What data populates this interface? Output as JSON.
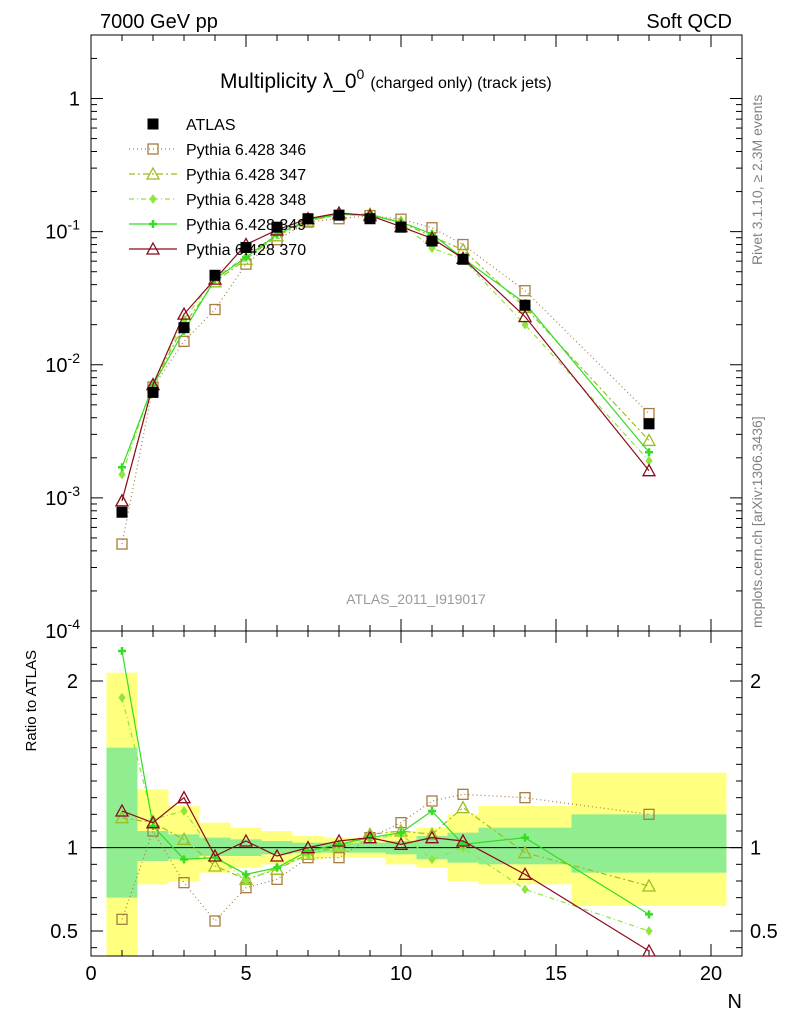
{
  "header": {
    "left": "7000 GeV pp",
    "right": "Soft QCD"
  },
  "title": {
    "main": "Multiplicity λ_0",
    "sup": "0",
    "sub": "(charged only) (track jets)"
  },
  "side": {
    "rivet": "Rivet 3.1.10, ≥ 2.3M events",
    "mcplots": "mcplots.cern.ch [arXiv:1306.3436]"
  },
  "watermark": "ATLAS_2011_I919017",
  "colors": {
    "atlas": "#000000",
    "p346": "#a87d3e",
    "p347": "#9bbe1e",
    "p348": "#8ee63c",
    "p349": "#33dd22",
    "p370": "#8b0a1e",
    "band_inner": "#90ee90",
    "band_outer": "#ffff80"
  },
  "chart_data": {
    "type": "line",
    "xlabel": "N",
    "ylabel_ratio": "Ratio to ATLAS",
    "xlim": [
      0,
      21
    ],
    "ylim_main": [
      0.0001,
      3
    ],
    "ylim_ratio": [
      0.35,
      2.3
    ],
    "yscale_main": "log",
    "x_ticks": [
      "0",
      "5",
      "10",
      "15",
      "20"
    ],
    "y_ticks_main": [
      "10^-4",
      "10^-3",
      "10^-2",
      "10^-1",
      "1"
    ],
    "y_ticks_ratio": [
      "0.5",
      "1",
      "2"
    ],
    "legend_position": "top-left",
    "x": [
      1,
      2,
      3,
      4,
      5,
      6,
      7,
      8,
      9,
      10,
      11,
      12,
      14,
      18
    ],
    "atlas": {
      "name": "ATLAS",
      "values": [
        0.00078,
        0.0062,
        0.019,
        0.047,
        0.076,
        0.108,
        0.125,
        0.133,
        0.125,
        0.108,
        0.085,
        0.062,
        0.028,
        0.0036
      ],
      "band_inner": [
        [
          0.7,
          1.6
        ],
        [
          0.92,
          1.1
        ],
        [
          0.93,
          1.08
        ],
        [
          0.95,
          1.06
        ],
        [
          0.95,
          1.05
        ],
        [
          0.96,
          1.04
        ],
        [
          0.97,
          1.03
        ],
        [
          0.97,
          1.03
        ],
        [
          0.97,
          1.03
        ],
        [
          0.96,
          1.04
        ],
        [
          0.93,
          1.07
        ],
        [
          0.91,
          1.09
        ],
        [
          0.9,
          1.12
        ],
        [
          0.85,
          1.2
        ]
      ],
      "band_outer": [
        [
          0.35,
          2.05
        ],
        [
          0.78,
          1.35
        ],
        [
          0.8,
          1.25
        ],
        [
          0.85,
          1.15
        ],
        [
          0.88,
          1.12
        ],
        [
          0.9,
          1.1
        ],
        [
          0.93,
          1.07
        ],
        [
          0.94,
          1.06
        ],
        [
          0.94,
          1.06
        ],
        [
          0.9,
          1.1
        ],
        [
          0.88,
          1.12
        ],
        [
          0.8,
          1.2
        ],
        [
          0.78,
          1.25
        ],
        [
          0.65,
          1.45
        ]
      ]
    },
    "series": [
      {
        "name": "Pythia 6.428 346",
        "values": [
          0.00045,
          0.0068,
          0.015,
          0.026,
          0.057,
          0.087,
          0.118,
          0.125,
          0.132,
          0.124,
          0.107,
          0.08,
          0.036,
          0.0043
        ],
        "ratio": [
          0.57,
          1.1,
          0.79,
          0.56,
          0.76,
          0.81,
          0.94,
          0.94,
          1.06,
          1.15,
          1.28,
          1.32,
          1.3,
          1.2
        ]
      },
      {
        "name": "Pythia 6.428 347",
        "values": [
          0.00095,
          0.0071,
          0.02,
          0.042,
          0.062,
          0.093,
          0.12,
          0.135,
          0.135,
          0.117,
          0.092,
          0.073,
          0.027,
          0.0027
        ],
        "ratio": [
          1.18,
          1.15,
          1.05,
          0.89,
          0.81,
          0.87,
          0.96,
          1.01,
          1.08,
          1.1,
          1.08,
          1.24,
          0.97,
          0.77
        ]
      },
      {
        "name": "Pythia 6.428 348",
        "values": [
          0.0015,
          0.0072,
          0.022,
          0.045,
          0.065,
          0.096,
          0.12,
          0.134,
          0.132,
          0.117,
          0.075,
          0.062,
          0.02,
          0.0019
        ],
        "ratio": [
          1.9,
          1.17,
          1.22,
          0.96,
          0.8,
          0.88,
          0.96,
          1.0,
          1.05,
          1.08,
          0.93,
          1.0,
          0.75,
          0.5
        ]
      },
      {
        "name": "Pythia 6.428 349",
        "values": [
          0.0017,
          0.007,
          0.018,
          0.044,
          0.064,
          0.095,
          0.123,
          0.135,
          0.133,
          0.118,
          0.096,
          0.063,
          0.029,
          0.0022
        ],
        "ratio": [
          2.18,
          1.13,
          0.93,
          0.94,
          0.84,
          0.88,
          0.98,
          1.02,
          1.06,
          1.09,
          1.22,
          1.02,
          1.06,
          0.6
        ]
      },
      {
        "name": "Pythia 6.428 370",
        "values": [
          0.00095,
          0.0071,
          0.024,
          0.044,
          0.08,
          0.103,
          0.125,
          0.138,
          0.132,
          0.109,
          0.089,
          0.063,
          0.023,
          0.0016
        ],
        "ratio": [
          1.22,
          1.15,
          1.3,
          0.95,
          1.04,
          0.95,
          1.0,
          1.04,
          1.06,
          1.02,
          1.06,
          1.04,
          0.84,
          0.38
        ]
      }
    ]
  }
}
